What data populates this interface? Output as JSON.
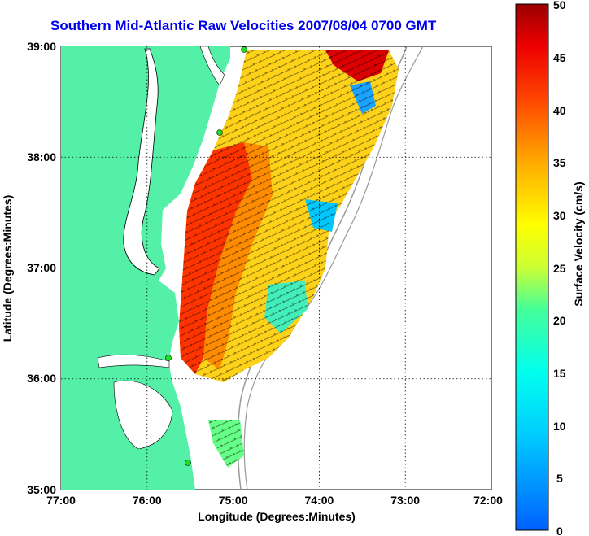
{
  "title": "Southern Mid-Atlantic Raw Velocities 2007/08/04 0700 GMT",
  "map": {
    "xlabel": "Longitude (Degrees:Minutes)",
    "ylabel": "Latitude (Degrees:Minutes)",
    "x_ticks": [
      "77:00",
      "76:00",
      "75:00",
      "74:00",
      "73:00",
      "72:00"
    ],
    "y_ticks": [
      "39:00",
      "38:00",
      "37:00",
      "36:00",
      "35:00"
    ],
    "lon_range": [
      -77,
      -72
    ],
    "lat_range": [
      35,
      39
    ],
    "land_color": "#55f0a8",
    "grid": "dotted"
  },
  "colorbar": {
    "label": "Surface Velocity (cm/s)",
    "ticks": [
      "50",
      "45",
      "40",
      "35",
      "30",
      "25",
      "20",
      "15",
      "10",
      "5",
      "0"
    ],
    "range": [
      0,
      50
    ]
  }
}
